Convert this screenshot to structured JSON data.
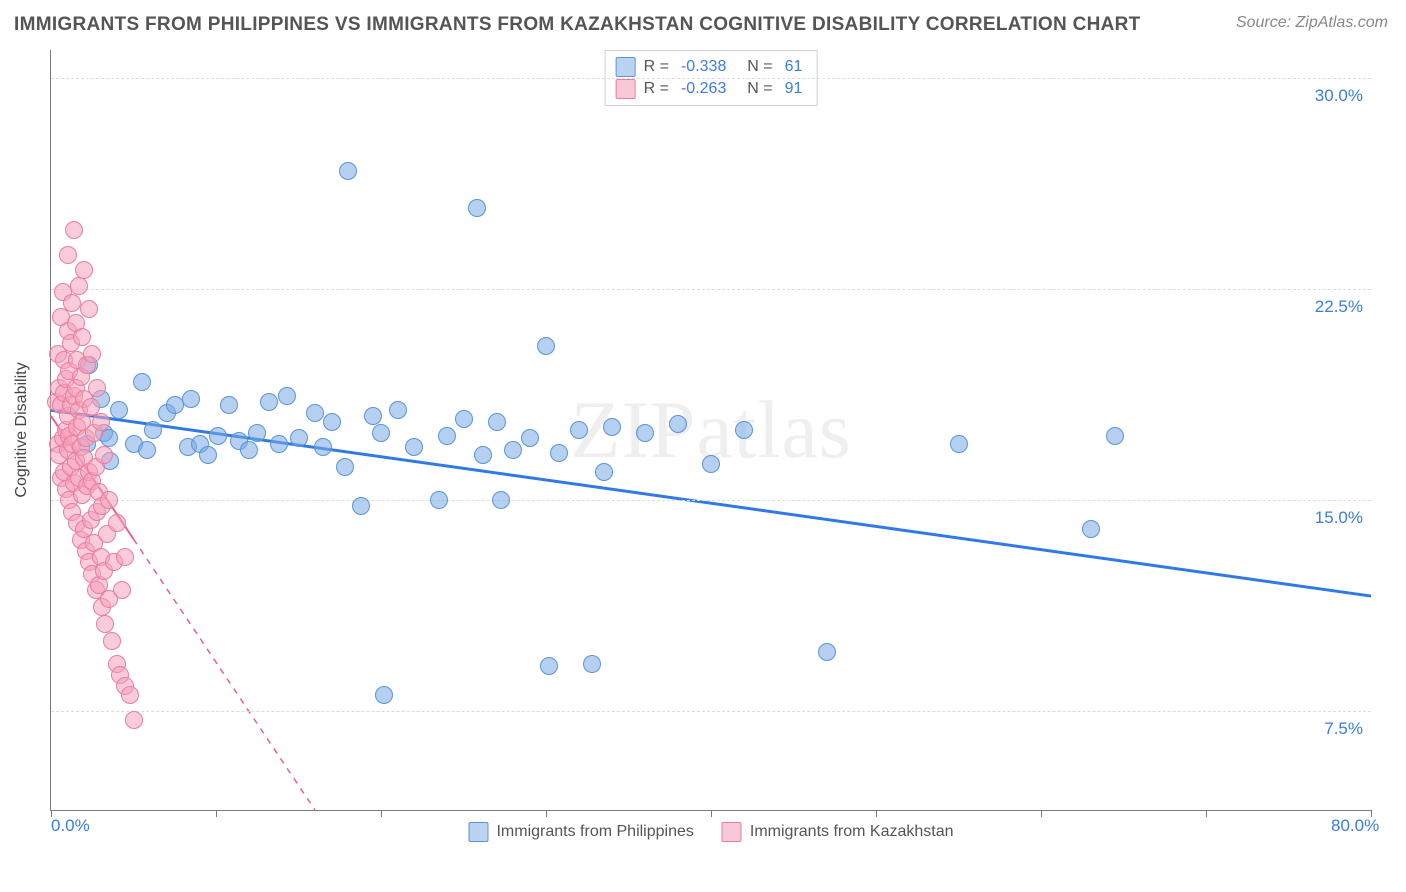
{
  "title": "IMMIGRANTS FROM PHILIPPINES VS IMMIGRANTS FROM KAZAKHSTAN COGNITIVE DISABILITY CORRELATION CHART",
  "source": "Source: ZipAtlas.com",
  "watermark": "ZIPatlas",
  "chart": {
    "type": "scatter",
    "ylabel": "Cognitive Disability",
    "background_color": "#ffffff",
    "grid_color": "#dcdcdc",
    "axis_color": "#7a7a7a",
    "tick_label_color": "#3b7ddd",
    "xlim": [
      0,
      80
    ],
    "ylim": [
      4,
      31
    ],
    "x_ticks": [
      0,
      10,
      20,
      30,
      40,
      50,
      60,
      70,
      80
    ],
    "x_tick_labels": {
      "0": "0.0%",
      "80": "80.0%"
    },
    "y_gridlines": [
      7.5,
      15.0,
      22.5,
      30.0
    ],
    "marker_radius": 8,
    "marker_stroke_width": 1,
    "series": [
      {
        "name": "Immigrants from Philippines",
        "fill_color": "rgba(120,170,230,0.55)",
        "stroke_color": "#5a94d6",
        "swatch_fill": "#b9d4f1",
        "swatch_border": "#5a94d6",
        "R": "-0.338",
        "N": "61",
        "regression": {
          "x1": 0,
          "y1": 18.2,
          "x2": 80,
          "y2": 11.6,
          "color": "#2f7ae5",
          "width": 3,
          "dash": "none"
        },
        "points": [
          [
            2.2,
            17.0
          ],
          [
            2.3,
            19.8
          ],
          [
            3.0,
            18.6
          ],
          [
            3.2,
            17.4
          ],
          [
            3.5,
            17.2
          ],
          [
            3.6,
            16.4
          ],
          [
            4.1,
            18.2
          ],
          [
            5.0,
            17.0
          ],
          [
            5.5,
            19.2
          ],
          [
            5.8,
            16.8
          ],
          [
            6.2,
            17.5
          ],
          [
            7.0,
            18.1
          ],
          [
            7.5,
            18.4
          ],
          [
            8.3,
            16.9
          ],
          [
            8.5,
            18.6
          ],
          [
            9.0,
            17.0
          ],
          [
            9.5,
            16.6
          ],
          [
            10.1,
            17.3
          ],
          [
            10.8,
            18.4
          ],
          [
            11.4,
            17.1
          ],
          [
            12.0,
            16.8
          ],
          [
            12.5,
            17.4
          ],
          [
            13.2,
            18.5
          ],
          [
            13.8,
            17.0
          ],
          [
            14.3,
            18.7
          ],
          [
            15.0,
            17.2
          ],
          [
            16.0,
            18.1
          ],
          [
            16.5,
            16.9
          ],
          [
            17.0,
            17.8
          ],
          [
            17.8,
            16.2
          ],
          [
            18.0,
            26.7
          ],
          [
            18.8,
            14.8
          ],
          [
            19.5,
            18.0
          ],
          [
            20.0,
            17.4
          ],
          [
            20.2,
            8.1
          ],
          [
            21.0,
            18.2
          ],
          [
            22.0,
            16.9
          ],
          [
            23.5,
            15.0
          ],
          [
            24.0,
            17.3
          ],
          [
            25.0,
            17.9
          ],
          [
            25.8,
            25.4
          ],
          [
            26.2,
            16.6
          ],
          [
            27.0,
            17.8
          ],
          [
            27.3,
            15.0
          ],
          [
            28.0,
            16.8
          ],
          [
            29.0,
            17.2
          ],
          [
            30.0,
            20.5
          ],
          [
            30.2,
            9.1
          ],
          [
            30.8,
            16.7
          ],
          [
            32.0,
            17.5
          ],
          [
            32.8,
            9.2
          ],
          [
            33.5,
            16.0
          ],
          [
            34.0,
            17.6
          ],
          [
            36.0,
            17.4
          ],
          [
            38.0,
            17.7
          ],
          [
            40.0,
            16.3
          ],
          [
            42.0,
            17.5
          ],
          [
            47.0,
            9.6
          ],
          [
            55.0,
            17.0
          ],
          [
            63.0,
            14.0
          ],
          [
            64.5,
            17.3
          ]
        ]
      },
      {
        "name": "Immigrants from Kazakhstan",
        "fill_color": "rgba(245,160,185,0.55)",
        "stroke_color": "#e97da0",
        "swatch_fill": "#f7c9d7",
        "swatch_border": "#e97da0",
        "R": "-0.263",
        "N": "91",
        "regression": {
          "x1": 0,
          "y1": 18.0,
          "x2": 16,
          "y2": 4.0,
          "color": "#ea5f8d",
          "width": 2,
          "dash": "solid-then-dash",
          "solid_until_x": 5.0
        },
        "points": [
          [
            0.3,
            18.5
          ],
          [
            0.4,
            17.0
          ],
          [
            0.4,
            20.2
          ],
          [
            0.5,
            16.6
          ],
          [
            0.5,
            19.0
          ],
          [
            0.6,
            15.8
          ],
          [
            0.6,
            18.4
          ],
          [
            0.6,
            21.5
          ],
          [
            0.7,
            17.2
          ],
          [
            0.7,
            22.4
          ],
          [
            0.8,
            16.0
          ],
          [
            0.8,
            18.8
          ],
          [
            0.8,
            20.0
          ],
          [
            0.9,
            15.4
          ],
          [
            0.9,
            17.5
          ],
          [
            0.9,
            19.3
          ],
          [
            1.0,
            16.8
          ],
          [
            1.0,
            18.0
          ],
          [
            1.0,
            21.0
          ],
          [
            1.0,
            23.7
          ],
          [
            1.1,
            15.0
          ],
          [
            1.1,
            17.3
          ],
          [
            1.1,
            19.6
          ],
          [
            1.2,
            16.2
          ],
          [
            1.2,
            18.4
          ],
          [
            1.2,
            20.6
          ],
          [
            1.3,
            14.6
          ],
          [
            1.3,
            17.0
          ],
          [
            1.3,
            22.0
          ],
          [
            1.4,
            15.6
          ],
          [
            1.4,
            18.7
          ],
          [
            1.4,
            24.6
          ],
          [
            1.5,
            16.4
          ],
          [
            1.5,
            19.0
          ],
          [
            1.5,
            21.3
          ],
          [
            1.6,
            14.2
          ],
          [
            1.6,
            17.6
          ],
          [
            1.6,
            20.0
          ],
          [
            1.7,
            15.8
          ],
          [
            1.7,
            18.2
          ],
          [
            1.7,
            22.6
          ],
          [
            1.8,
            13.6
          ],
          [
            1.8,
            16.9
          ],
          [
            1.8,
            19.4
          ],
          [
            1.9,
            15.2
          ],
          [
            1.9,
            17.8
          ],
          [
            1.9,
            20.8
          ],
          [
            2.0,
            14.0
          ],
          [
            2.0,
            16.5
          ],
          [
            2.0,
            18.6
          ],
          [
            2.0,
            23.2
          ],
          [
            2.1,
            13.2
          ],
          [
            2.1,
            17.2
          ],
          [
            2.2,
            15.5
          ],
          [
            2.2,
            19.8
          ],
          [
            2.3,
            12.8
          ],
          [
            2.3,
            16.0
          ],
          [
            2.3,
            21.8
          ],
          [
            2.4,
            14.3
          ],
          [
            2.4,
            18.3
          ],
          [
            2.5,
            12.4
          ],
          [
            2.5,
            15.7
          ],
          [
            2.5,
            20.2
          ],
          [
            2.6,
            13.5
          ],
          [
            2.6,
            17.4
          ],
          [
            2.7,
            11.8
          ],
          [
            2.7,
            16.2
          ],
          [
            2.8,
            14.6
          ],
          [
            2.8,
            19.0
          ],
          [
            2.9,
            12.0
          ],
          [
            2.9,
            15.3
          ],
          [
            3.0,
            13.0
          ],
          [
            3.0,
            17.8
          ],
          [
            3.1,
            11.2
          ],
          [
            3.1,
            14.8
          ],
          [
            3.2,
            12.5
          ],
          [
            3.2,
            16.6
          ],
          [
            3.3,
            10.6
          ],
          [
            3.4,
            13.8
          ],
          [
            3.5,
            11.5
          ],
          [
            3.5,
            15.0
          ],
          [
            3.7,
            10.0
          ],
          [
            3.8,
            12.8
          ],
          [
            4.0,
            9.2
          ],
          [
            4.0,
            14.2
          ],
          [
            4.2,
            8.8
          ],
          [
            4.3,
            11.8
          ],
          [
            4.5,
            8.4
          ],
          [
            4.5,
            13.0
          ],
          [
            4.8,
            8.1
          ],
          [
            5.0,
            7.2
          ]
        ]
      }
    ]
  }
}
